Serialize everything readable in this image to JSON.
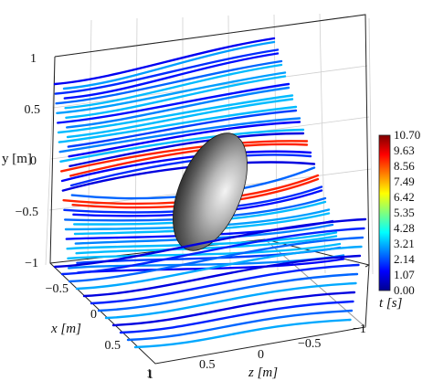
{
  "chart_data": {
    "type": "3d-streamlines",
    "title": "",
    "axes": {
      "x": {
        "label": "x [m]",
        "ticks": [
          "−0.5",
          "0",
          "0.5",
          "1"
        ],
        "range": [
          -1,
          1
        ]
      },
      "y": {
        "label": "y [m]",
        "ticks": [
          "1",
          "0.5",
          "0",
          "−0.5",
          "−1"
        ],
        "range": [
          -1,
          1
        ]
      },
      "z": {
        "label": "z [m]",
        "ticks": [
          "1",
          "0.5",
          "0",
          "−0.5",
          "−1"
        ],
        "range": [
          -1,
          1
        ]
      }
    },
    "grid": true,
    "object": "ellipsoid (gray, shaded)",
    "colorbar": {
      "label": "t [s]",
      "ticks": [
        "10.70",
        "9.63",
        "8.56",
        "7.49",
        "6.42",
        "5.35",
        "4.28",
        "3.21",
        "2.14",
        "1.07",
        "0.00"
      ],
      "range": [
        0,
        10.7
      ],
      "colormap": "jet"
    },
    "streamline_t_levels": [
      1.2,
      1.8,
      2.4,
      3.0,
      1.5,
      9.5,
      10.2,
      2.7,
      3.3,
      2.0,
      1.3,
      1.0
    ]
  }
}
